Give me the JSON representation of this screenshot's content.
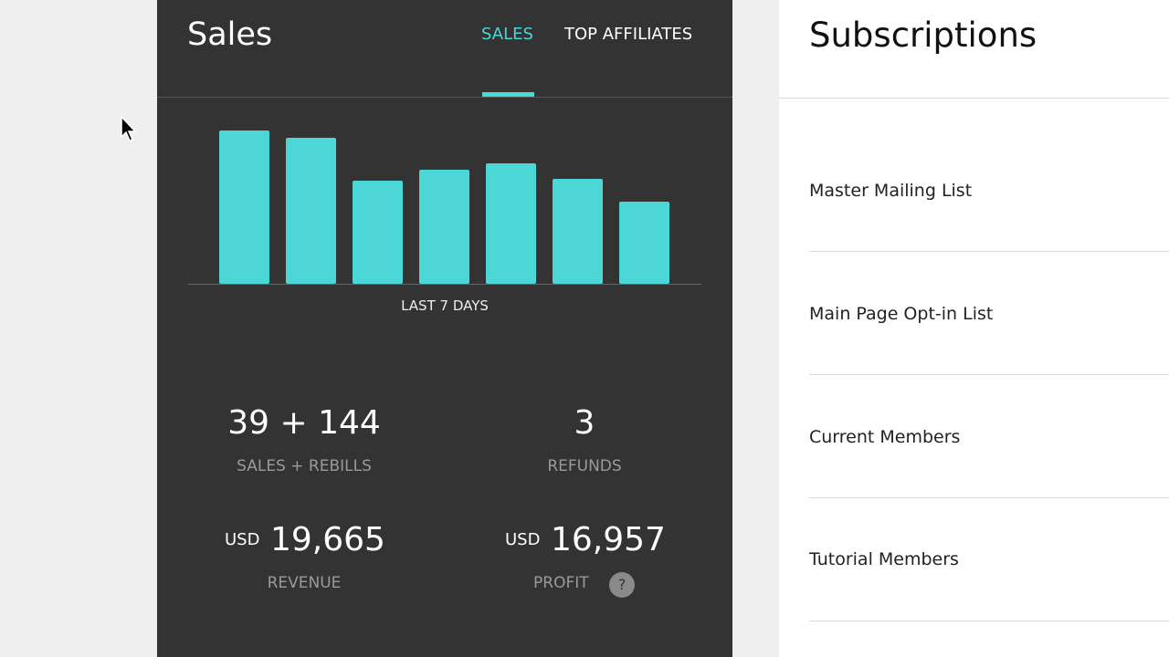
{
  "sales_panel": {
    "title": "Sales",
    "tabs": [
      "SALES",
      "TOP AFFILIATES"
    ],
    "stats": [
      {
        "value": "39 + 144",
        "label": "SALES + REBILLS"
      },
      {
        "value": "3",
        "label": "REFUNDS"
      },
      {
        "currency": "USD",
        "value": "19,665",
        "label": "REVENUE"
      },
      {
        "currency": "USD",
        "value": "16,957",
        "label": "PROFIT",
        "help": "?"
      }
    ]
  },
  "chart_data": {
    "type": "bar",
    "x_label": "LAST 7 DAYS",
    "values": [
      168,
      160,
      113,
      125,
      132,
      115,
      90
    ],
    "ylim": [
      0,
      180
    ],
    "color": "#4dd6d6"
  },
  "subscriptions": {
    "title": "Subscriptions",
    "items": [
      "Master Mailing List",
      "Main Page Opt-in List",
      "Current Members",
      "Tutorial Members"
    ]
  }
}
